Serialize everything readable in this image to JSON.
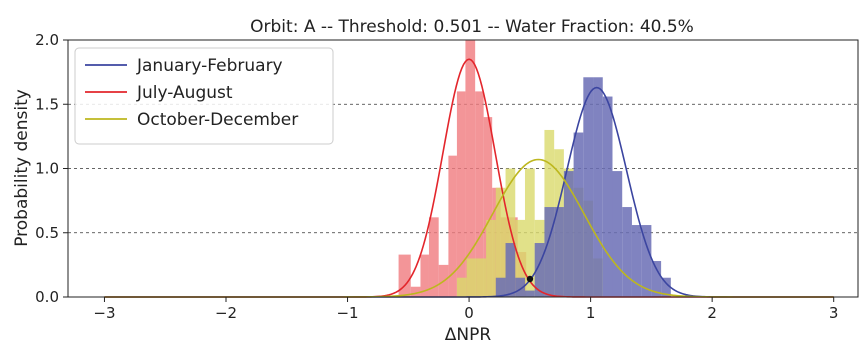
{
  "chart_data": {
    "type": "bar",
    "title": "Orbit: A -- Threshold: 0.501 -- Water Fraction: 40.5%",
    "xlabel": "ΔNPR",
    "ylabel": "Probability density",
    "xlim": [
      -3.3,
      3.2
    ],
    "ylim": [
      0,
      2.0
    ],
    "xticks": [
      -3,
      -2,
      -1,
      0,
      1,
      2,
      3
    ],
    "xtick_labels": [
      "−3",
      "−2",
      "−1",
      "0",
      "1",
      "2",
      "3"
    ],
    "yticks": [
      0.0,
      0.5,
      1.0,
      1.5,
      2.0
    ],
    "ytick_labels": [
      "0.0",
      "0.5",
      "1.0",
      "1.5",
      "2.0"
    ],
    "grid": {
      "axis": "y",
      "style": "dashed",
      "values": [
        0.5,
        1.0,
        1.5
      ]
    },
    "legend_position": "top-left",
    "series": [
      {
        "name": "January-February",
        "color": "#3b45a0",
        "hist_color": "#6a6db5",
        "bins": [
          {
            "x0": 0.22,
            "x1": 0.3,
            "y": 0.15
          },
          {
            "x0": 0.3,
            "x1": 0.38,
            "y": 0.42
          },
          {
            "x0": 0.38,
            "x1": 0.46,
            "y": 0.15
          },
          {
            "x0": 0.46,
            "x1": 0.54,
            "y": 0.05
          },
          {
            "x0": 0.54,
            "x1": 0.62,
            "y": 0.42
          },
          {
            "x0": 0.62,
            "x1": 0.7,
            "y": 0.7
          },
          {
            "x0": 0.7,
            "x1": 0.78,
            "y": 0.7
          },
          {
            "x0": 0.78,
            "x1": 0.86,
            "y": 0.98
          },
          {
            "x0": 0.86,
            "x1": 0.94,
            "y": 1.28
          },
          {
            "x0": 0.94,
            "x1": 1.02,
            "y": 1.71
          },
          {
            "x0": 1.02,
            "x1": 1.1,
            "y": 1.71
          },
          {
            "x0": 1.1,
            "x1": 1.18,
            "y": 1.56
          },
          {
            "x0": 1.18,
            "x1": 1.26,
            "y": 0.98
          },
          {
            "x0": 1.26,
            "x1": 1.34,
            "y": 0.7
          },
          {
            "x0": 1.34,
            "x1": 1.42,
            "y": 0.56
          },
          {
            "x0": 1.42,
            "x1": 1.5,
            "y": 0.56
          },
          {
            "x0": 1.5,
            "x1": 1.58,
            "y": 0.28
          },
          {
            "x0": 1.58,
            "x1": 1.66,
            "y": 0.15
          }
        ],
        "curve": {
          "mean": 1.05,
          "sd": 0.245,
          "peak": 1.63
        }
      },
      {
        "name": "July-August",
        "color": "#e3262c",
        "hist_color": "#f07b7e",
        "bins": [
          {
            "x0": -0.58,
            "x1": -0.48,
            "y": 0.33
          },
          {
            "x0": -0.48,
            "x1": -0.4,
            "y": 0.08
          },
          {
            "x0": -0.4,
            "x1": -0.33,
            "y": 0.33
          },
          {
            "x0": -0.33,
            "x1": -0.25,
            "y": 0.62
          },
          {
            "x0": -0.25,
            "x1": -0.17,
            "y": 0.25
          },
          {
            "x0": -0.17,
            "x1": -0.1,
            "y": 1.1
          },
          {
            "x0": -0.1,
            "x1": -0.03,
            "y": 1.6
          },
          {
            "x0": -0.03,
            "x1": 0.05,
            "y": 2.0
          },
          {
            "x0": 0.05,
            "x1": 0.12,
            "y": 1.6
          },
          {
            "x0": 0.12,
            "x1": 0.19,
            "y": 1.4
          },
          {
            "x0": 0.19,
            "x1": 0.26,
            "y": 0.85
          },
          {
            "x0": 0.26,
            "x1": 0.33,
            "y": 0.62
          },
          {
            "x0": 0.33,
            "x1": 0.4,
            "y": 0.62
          },
          {
            "x0": 0.4,
            "x1": 0.47,
            "y": 0.35
          }
        ],
        "curve": {
          "mean": 0.0,
          "sd": 0.215,
          "peak": 1.85
        }
      },
      {
        "name": "October-December",
        "color": "#bdb71e",
        "hist_color": "#d9d96b",
        "bins": [
          {
            "x0": -0.1,
            "x1": -0.02,
            "y": 0.15
          },
          {
            "x0": -0.02,
            "x1": 0.06,
            "y": 0.3
          },
          {
            "x0": 0.06,
            "x1": 0.14,
            "y": 0.3
          },
          {
            "x0": 0.14,
            "x1": 0.22,
            "y": 0.6
          },
          {
            "x0": 0.22,
            "x1": 0.3,
            "y": 0.85
          },
          {
            "x0": 0.3,
            "x1": 0.38,
            "y": 1.0
          },
          {
            "x0": 0.38,
            "x1": 0.46,
            "y": 0.6
          },
          {
            "x0": 0.46,
            "x1": 0.54,
            "y": 1.0
          },
          {
            "x0": 0.54,
            "x1": 0.62,
            "y": 0.6
          },
          {
            "x0": 0.62,
            "x1": 0.7,
            "y": 1.3
          },
          {
            "x0": 0.7,
            "x1": 0.78,
            "y": 1.15
          },
          {
            "x0": 0.78,
            "x1": 0.86,
            "y": 1.0
          },
          {
            "x0": 0.86,
            "x1": 0.94,
            "y": 0.85
          },
          {
            "x0": 0.94,
            "x1": 1.02,
            "y": 0.75
          },
          {
            "x0": 1.02,
            "x1": 1.1,
            "y": 0.3
          }
        ],
        "curve": {
          "mean": 0.57,
          "sd": 0.375,
          "peak": 1.07
        }
      }
    ],
    "threshold": {
      "x": 0.501,
      "y": 0.14
    }
  }
}
